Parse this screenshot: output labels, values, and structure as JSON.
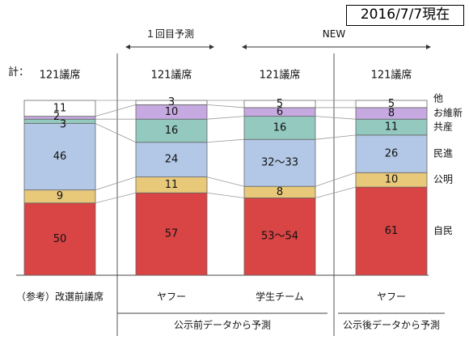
{
  "header": {
    "date_stamp": "2016/7/7現在"
  },
  "annotations": {
    "prediction_round": "１回目予測",
    "new": "NEW",
    "total_prefix": "計：",
    "group_prenotice": "公示前データから予測",
    "group_postnotice": "公示後データから予測"
  },
  "chart_data": {
    "type": "bar",
    "stacked": true,
    "title": "",
    "xlabel": "",
    "ylabel": "",
    "ylim": [
      0,
      121
    ],
    "grid": false,
    "legend": "right, labels beside last bar",
    "categories": [
      "（参考）改選前議席",
      "ヤフー",
      "学生チーム",
      "ヤフー"
    ],
    "totals": [
      "121議席",
      "121議席",
      "121議席",
      "121議席"
    ],
    "series": [
      {
        "name": "自民",
        "color": "#D94444",
        "values": [
          50,
          57,
          53.5,
          61
        ],
        "labels": [
          "50",
          "57",
          "53〜54",
          "61"
        ]
      },
      {
        "name": "公明",
        "color": "#E8C97A",
        "values": [
          9,
          11,
          8,
          10
        ],
        "labels": [
          "9",
          "11",
          "8",
          "10"
        ]
      },
      {
        "name": "民進",
        "color": "#B3C8E6",
        "values": [
          46,
          24,
          32.5,
          26
        ],
        "labels": [
          "46",
          "24",
          "32〜33",
          "26"
        ]
      },
      {
        "name": "共産",
        "color": "#93C9BE",
        "values": [
          3,
          16,
          16,
          11
        ],
        "labels": [
          "3",
          "16",
          "16",
          "11"
        ]
      },
      {
        "name": "お維新",
        "color": "#C6A9E0",
        "values": [
          2,
          10,
          6,
          8
        ],
        "labels": [
          "2",
          "10",
          "6",
          "8"
        ]
      },
      {
        "name": "他",
        "color": "#FFFFFF",
        "values": [
          11,
          3,
          5,
          5
        ],
        "labels": [
          "11",
          "3",
          "5",
          "5"
        ]
      }
    ]
  }
}
